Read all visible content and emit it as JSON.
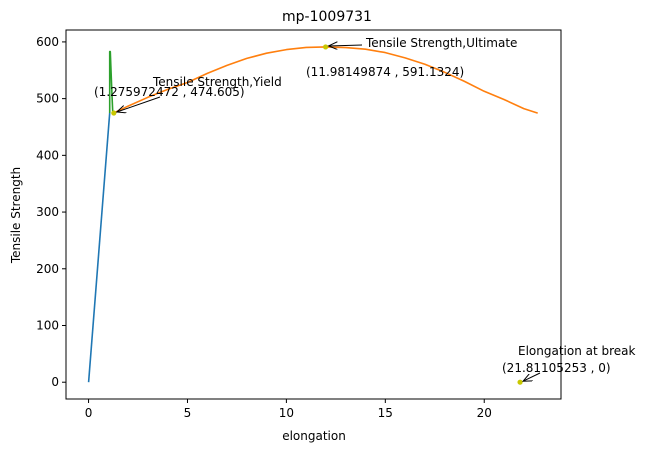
{
  "chart_data": {
    "type": "line",
    "title": "mp-1009731",
    "xlabel": "elongation",
    "ylabel": "Tensile Strength",
    "xlim": [
      -1.14,
      23.88
    ],
    "ylim": [
      -29.6,
      621.0
    ],
    "xticks": [
      0,
      5,
      10,
      15,
      20
    ],
    "xtick_labels": [
      "0",
      "5",
      "10",
      "15",
      "20"
    ],
    "yticks": [
      0,
      100,
      200,
      300,
      400,
      500,
      600
    ],
    "ytick_labels": [
      "0",
      "100",
      "200",
      "300",
      "400",
      "500",
      "600"
    ],
    "grid": false,
    "series": [
      {
        "color": "#1f77b4",
        "x": [
          0,
          1.07
        ],
        "y": [
          0,
          474.6
        ]
      },
      {
        "color": "#2ca02c",
        "x": [
          1.07,
          1.07,
          1.1,
          1.14,
          1.18,
          1.22,
          1.275972472
        ],
        "y": [
          474.6,
          583.0,
          583.0,
          546.0,
          510.0,
          478.0,
          474.605
        ]
      },
      {
        "color": "#ff7f0e",
        "x": [
          1.275972472,
          2,
          3,
          4,
          5,
          6,
          7,
          8,
          9,
          10,
          11,
          11.98149874,
          13,
          14,
          15,
          16,
          17,
          18,
          19,
          20,
          21,
          22,
          22.7
        ],
        "y": [
          474.605,
          486.8,
          502.3,
          516.2,
          528.5,
          544.4,
          558.6,
          571.0,
          580.1,
          586.4,
          590.3,
          591.1324,
          590.0,
          587.1,
          581.1,
          571.8,
          560.7,
          546.5,
          530.4,
          513.0,
          498.4,
          482.4,
          474.5
        ]
      }
    ],
    "points": [
      {
        "x": 1.275972472,
        "y": 474.605,
        "color": "#c8c800"
      },
      {
        "x": 11.98149874,
        "y": 591.1324,
        "color": "#c8c800"
      },
      {
        "x": 21.81105253,
        "y": 0,
        "color": "#c8c800"
      }
    ],
    "annotations": [
      {
        "label": "Tensile Strength,Yield",
        "coord_text": "(1.275972472 , 474.605)",
        "x": 1.275972472,
        "y": 474.605
      },
      {
        "label": "Tensile Strength,Ultimate",
        "coord_text": "(11.98149874 , 591.1324)",
        "x": 11.98149874,
        "y": 591.1324
      },
      {
        "label": "Elongation at break",
        "coord_text": "(21.81105253 , 0)",
        "x": 21.81105253,
        "y": 0
      }
    ]
  }
}
